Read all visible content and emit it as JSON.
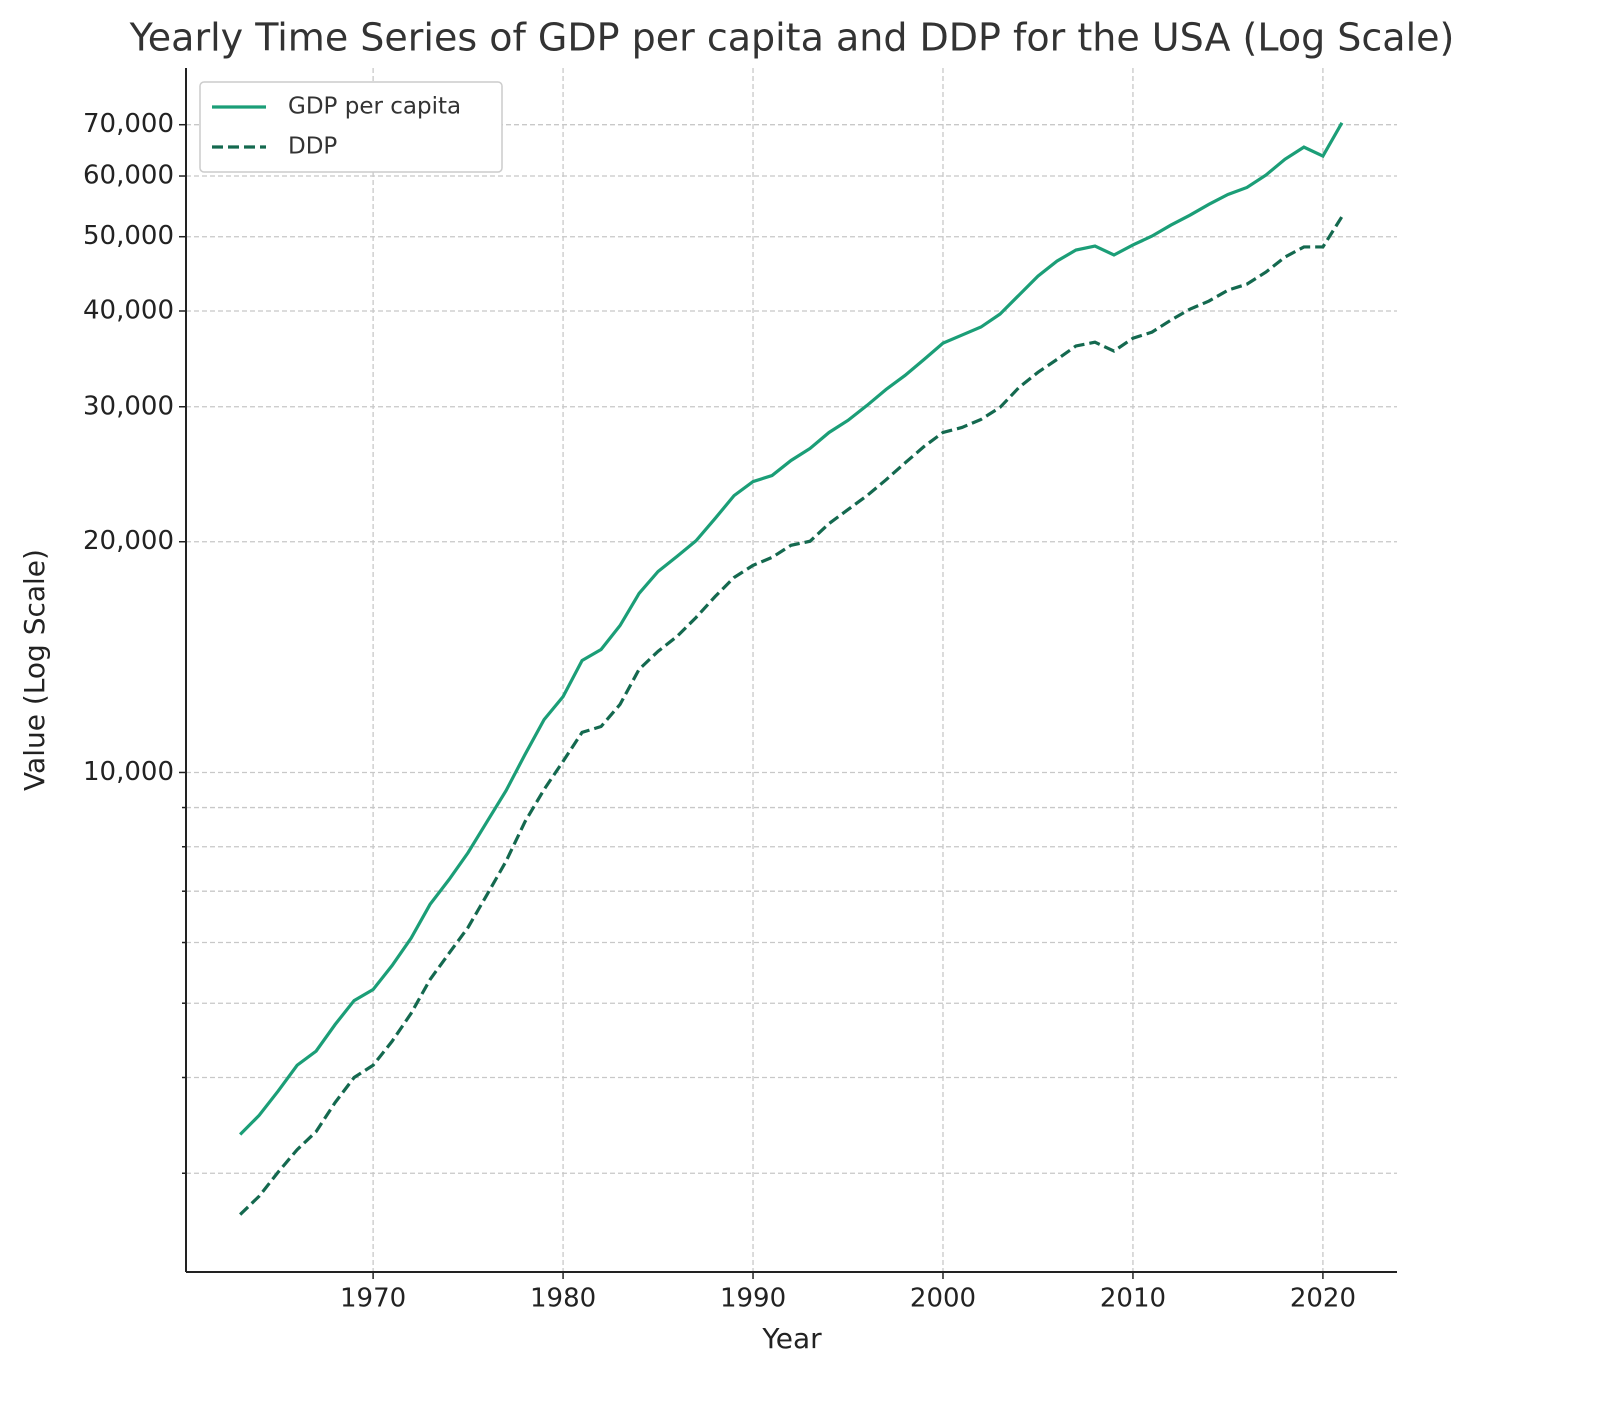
{
  "chart_data": {
    "type": "line",
    "title": "Yearly Time Series of GDP per capita and DDP for the USA (Log Scale)",
    "x_label": "Year",
    "y_label": "Value (Log Scale)",
    "x": [
      1963,
      1964,
      1965,
      1966,
      1967,
      1968,
      1969,
      1970,
      1971,
      1972,
      1973,
      1974,
      1975,
      1976,
      1977,
      1978,
      1979,
      1980,
      1981,
      1982,
      1983,
      1984,
      1985,
      1986,
      1987,
      1988,
      1989,
      1990,
      1991,
      1992,
      1993,
      1994,
      1995,
      1996,
      1997,
      1998,
      1999,
      2000,
      2001,
      2002,
      2003,
      2004,
      2005,
      2006,
      2007,
      2008,
      2009,
      2010,
      2011,
      2012,
      2013,
      2014,
      2015,
      2016,
      2017,
      2018,
      2019,
      2020,
      2021
    ],
    "series": [
      {
        "name": "GDP per capita",
        "color": "#1b9e77",
        "dash": false,
        "values": [
          3370,
          3570,
          3840,
          4150,
          4330,
          4690,
          5040,
          5210,
          5600,
          6080,
          6730,
          7250,
          7860,
          8630,
          9470,
          10560,
          11720,
          12560,
          14000,
          14470,
          15550,
          17120,
          18290,
          19140,
          20060,
          21440,
          22970,
          23960,
          24400,
          25530,
          26470,
          27770,
          28800,
          30120,
          31600,
          32960,
          34580,
          36320,
          37210,
          38120,
          39630,
          41960,
          44420,
          46470,
          48040,
          48620,
          47330,
          48780,
          50090,
          51780,
          53340,
          55110,
          56770,
          57970,
          60170,
          63100,
          65440,
          63700,
          70400
        ]
      },
      {
        "name": "DDP",
        "color": "#14694f",
        "dash": true,
        "values": [
          2650,
          2800,
          3010,
          3220,
          3400,
          3710,
          4000,
          4150,
          4460,
          4850,
          5370,
          5810,
          6280,
          6930,
          7660,
          8630,
          9500,
          10340,
          11280,
          11480,
          12270,
          13630,
          14390,
          15050,
          15930,
          16960,
          17960,
          18630,
          19080,
          19790,
          20030,
          21120,
          22030,
          22970,
          24090,
          25340,
          26620,
          27770,
          28190,
          28880,
          29940,
          31790,
          33270,
          34580,
          36010,
          36420,
          35460,
          36860,
          37540,
          38920,
          40220,
          41210,
          42580,
          43360,
          44960,
          47030,
          48490,
          48490,
          53100
        ]
      }
    ],
    "xlim": [
      1960.15,
      2023.9
    ],
    "xticks": [
      1970,
      1980,
      1990,
      2000,
      2010,
      2020
    ],
    "ylim": [
      2230,
      83000
    ],
    "log_scale": true,
    "yticks": [
      {
        "value": 10000,
        "label": "10,000"
      },
      {
        "value": 20000,
        "label": "20,000"
      },
      {
        "value": 30000,
        "label": "30,000"
      },
      {
        "value": 40000,
        "label": "40,000"
      },
      {
        "value": 50000,
        "label": "50,000"
      },
      {
        "value": 60000,
        "label": "60,000"
      },
      {
        "value": 70000,
        "label": "70,000"
      }
    ],
    "minor_yticks": [
      3000,
      4000,
      5000,
      6000,
      7000,
      8000,
      9000
    ],
    "grid": true,
    "legend": "upper left"
  }
}
